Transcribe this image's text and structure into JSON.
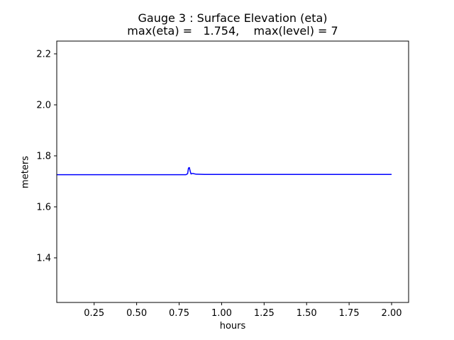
{
  "chart_data": {
    "type": "line",
    "title": "Gauge 3 : Surface Elevation (eta)",
    "subtitle": "max(eta) =   1.754,    max(level) = 7",
    "xlabel": "hours",
    "ylabel": "meters",
    "xlim": [
      0.03,
      2.1
    ],
    "ylim": [
      1.225,
      2.25
    ],
    "xticks": [
      0.25,
      0.5,
      0.75,
      1.0,
      1.25,
      1.5,
      1.75,
      2.0
    ],
    "xtick_labels": [
      "0.25",
      "0.50",
      "0.75",
      "1.00",
      "1.25",
      "1.50",
      "1.75",
      "2.00"
    ],
    "yticks": [
      1.4,
      1.6,
      1.8,
      2.0,
      2.2
    ],
    "ytick_labels": [
      "1.4",
      "1.6",
      "1.8",
      "2.0",
      "2.2"
    ],
    "grid": false,
    "series": [
      {
        "name": "eta",
        "color": "#0000ff",
        "x": [
          0.0,
          0.2,
          0.4,
          0.6,
          0.75,
          0.79,
          0.8,
          0.805,
          0.81,
          0.815,
          0.82,
          0.83,
          0.85,
          0.9,
          1.0,
          1.25,
          1.5,
          1.75,
          2.0
        ],
        "y": [
          1.726,
          1.726,
          1.726,
          1.726,
          1.726,
          1.726,
          1.73,
          1.752,
          1.754,
          1.74,
          1.729,
          1.731,
          1.728,
          1.727,
          1.727,
          1.727,
          1.727,
          1.727,
          1.727
        ]
      }
    ]
  }
}
